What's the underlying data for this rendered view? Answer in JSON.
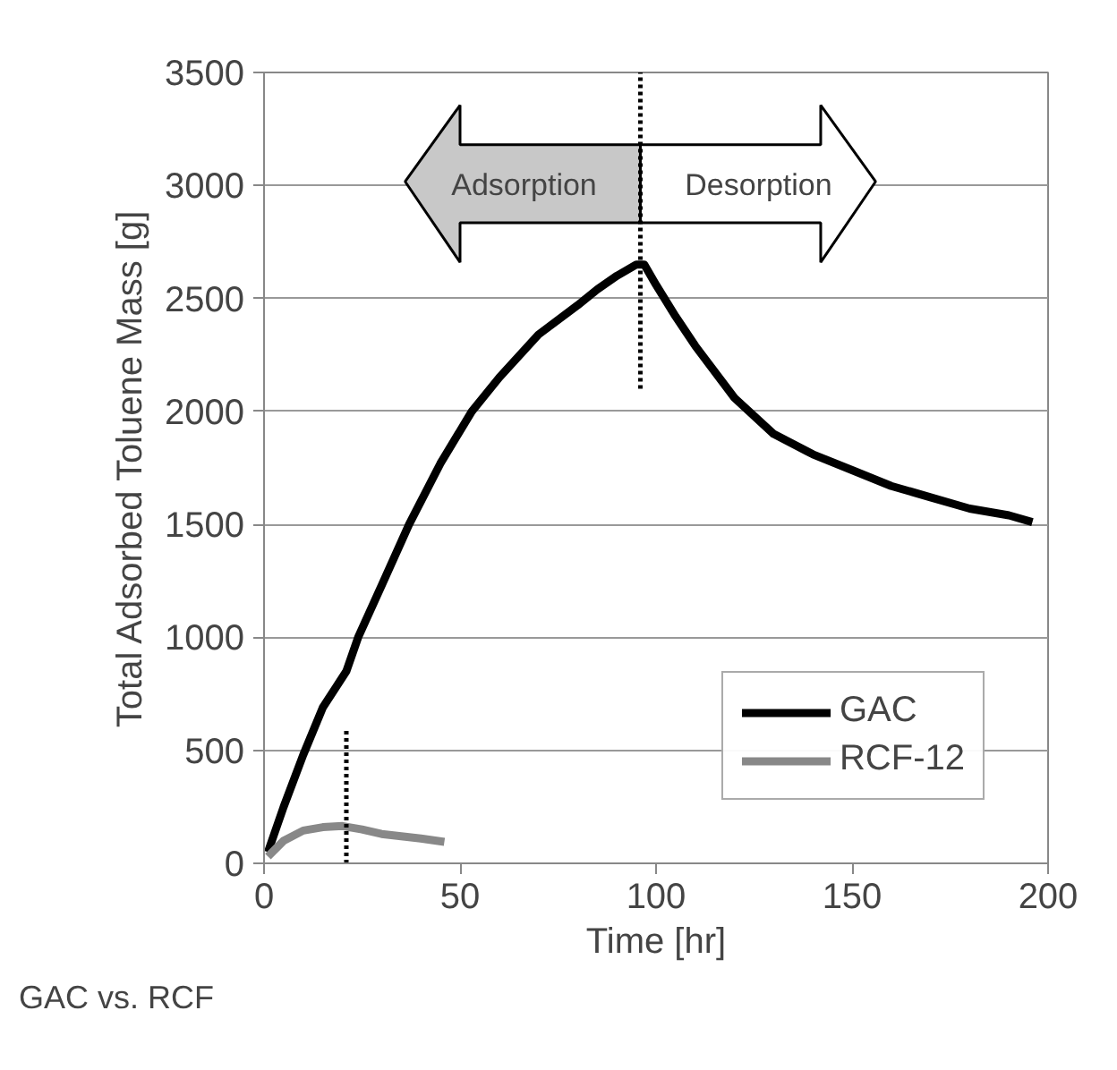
{
  "chart_data": {
    "type": "line",
    "xlabel": "Time [hr]",
    "ylabel": "Total Adsorbed Toluene Mass [g]",
    "xlim": [
      0,
      200
    ],
    "xticks": [
      0,
      50,
      100,
      150,
      200
    ],
    "ylim": [
      0,
      3500
    ],
    "yticks": [
      0,
      500,
      1000,
      1500,
      2000,
      2500,
      3000,
      3500
    ],
    "grid": "y",
    "legend": "bottom right",
    "line_style": "solid",
    "marker": "none",
    "series": [
      {
        "name": "GAC",
        "color": "#000000",
        "x": [
          1,
          5,
          10,
          15,
          21,
          24,
          30,
          37,
          45,
          53,
          60,
          70,
          80,
          85,
          90,
          95,
          97,
          100,
          105,
          110,
          120,
          130,
          140,
          150,
          160,
          170,
          180,
          190,
          196
        ],
        "values": [
          50,
          250,
          480,
          690,
          850,
          1000,
          1230,
          1500,
          1770,
          2000,
          2150,
          2340,
          2470,
          2540,
          2600,
          2650,
          2650,
          2560,
          2420,
          2290,
          2060,
          1900,
          1810,
          1740,
          1670,
          1620,
          1570,
          1540,
          1510
        ]
      },
      {
        "name": "RCF-12",
        "color": "#888888",
        "x": [
          1,
          5,
          10,
          15,
          20,
          25,
          30,
          35,
          40,
          46
        ],
        "values": [
          30,
          100,
          145,
          160,
          165,
          150,
          130,
          120,
          110,
          95
        ]
      },
      {
        "type": "line",
        "color": "#000000",
        "line_style": "dotted",
        "x": [
          96,
          96
        ],
        "values": [
          2100,
          3500
        ]
      },
      {
        "type": "line",
        "color": "#000000",
        "line_style": "dotted",
        "x": [
          21,
          21
        ],
        "values": [
          0,
          600
        ]
      }
    ],
    "annotations": [
      {
        "text": "Adsorption",
        "x": 96,
        "y": 3000
      },
      {
        "text": "Desorption",
        "x": 96,
        "y": 3000
      },
      "GAC vs. RCF"
    ]
  }
}
